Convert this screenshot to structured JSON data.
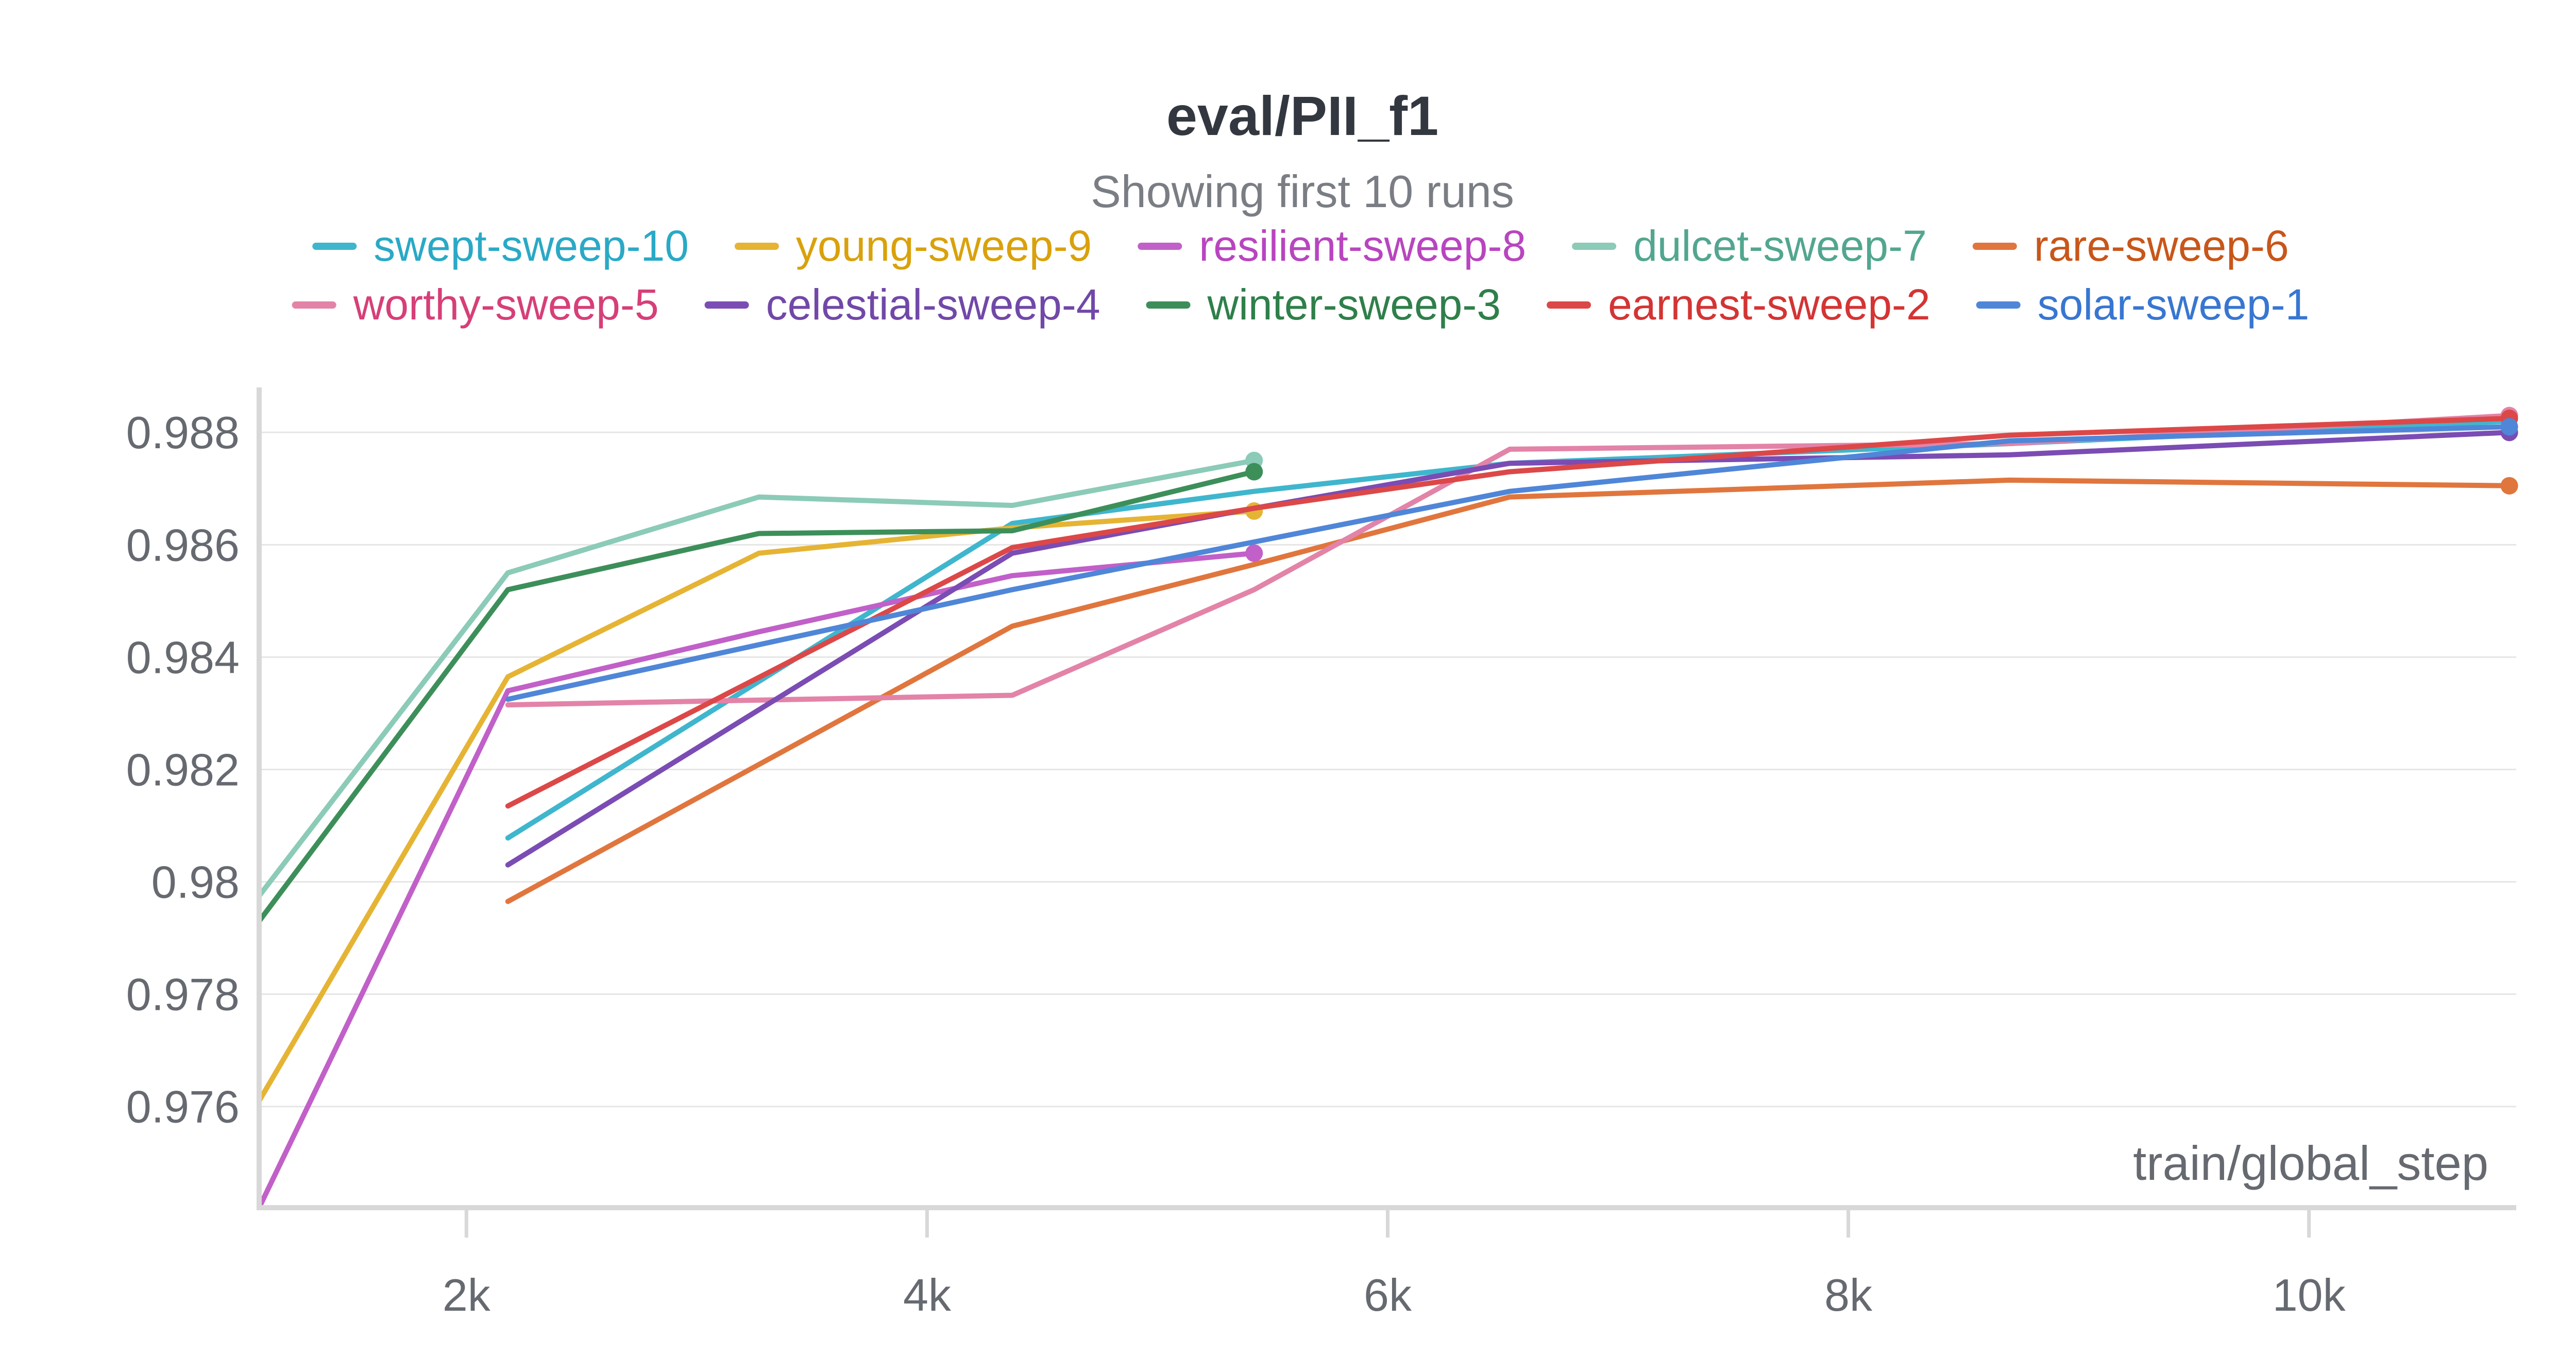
{
  "chart_data": {
    "type": "line",
    "title": "eval/PII_f1",
    "subtitle": "Showing first 10 runs",
    "xlabel": "train/global_step",
    "ylabel": "",
    "xlim": [
      1100,
      10900
    ],
    "ylim": [
      0.9742,
      0.9888
    ],
    "x_ticks": [
      2000,
      4000,
      6000,
      8000,
      10000
    ],
    "x_tick_labels": [
      "2k",
      "4k",
      "6k",
      "8k",
      "10k"
    ],
    "y_ticks": [
      0.976,
      0.978,
      0.98,
      0.982,
      0.984,
      0.986,
      0.988
    ],
    "y_tick_labels": [
      "0.976",
      "0.978",
      "0.98",
      "0.982",
      "0.984",
      "0.986",
      "0.988"
    ],
    "grid": true,
    "legend_position": "top",
    "series": [
      {
        "name": "swept-sweep-10",
        "color": "#3fb6cd",
        "text_color": "#2aa9c6",
        "end_marker": false,
        "x": [
          2180,
          4370,
          5420,
          6530,
          8700,
          10870
        ],
        "y": [
          0.98078,
          0.98638,
          0.98695,
          0.98745,
          0.9878,
          0.9882
        ]
      },
      {
        "name": "young-sweep-9",
        "color": "#e6b434",
        "text_color": "#d9a10b",
        "end_marker": true,
        "x": [
          1100,
          2180,
          3270,
          4370,
          5420
        ],
        "y": [
          0.9761,
          0.98365,
          0.98585,
          0.9863,
          0.9866
        ]
      },
      {
        "name": "resilient-sweep-8",
        "color": "#c160c8",
        "text_color": "#b845bf",
        "end_marker": true,
        "x": [
          1100,
          2180,
          3270,
          4370,
          5420
        ],
        "y": [
          0.9742,
          0.9834,
          0.98445,
          0.98545,
          0.98585
        ]
      },
      {
        "name": "dulcet-sweep-7",
        "color": "#8bcbb8",
        "text_color": "#52a68f",
        "end_marker": true,
        "x": [
          1100,
          2180,
          3270,
          4370,
          5420
        ],
        "y": [
          0.97975,
          0.9855,
          0.98685,
          0.9867,
          0.9875
        ]
      },
      {
        "name": "rare-sweep-6",
        "color": "#e0763e",
        "text_color": "#c8561a",
        "end_marker": true,
        "x": [
          2180,
          4370,
          5420,
          6530,
          8700,
          10870
        ],
        "y": [
          0.97965,
          0.98455,
          0.98565,
          0.98685,
          0.98715,
          0.98705
        ]
      },
      {
        "name": "worthy-sweep-5",
        "color": "#e383a8",
        "text_color": "#d63f78",
        "end_marker": true,
        "x": [
          2180,
          4370,
          5420,
          6530,
          8700,
          10870
        ],
        "y": [
          0.98315,
          0.98332,
          0.9852,
          0.9877,
          0.9878,
          0.9883
        ]
      },
      {
        "name": "celestial-sweep-4",
        "color": "#7b4cb3",
        "text_color": "#7148a8",
        "end_marker": true,
        "x": [
          2180,
          4370,
          5420,
          6530,
          8700,
          10870
        ],
        "y": [
          0.9803,
          0.98585,
          0.98665,
          0.98745,
          0.9876,
          0.988
        ]
      },
      {
        "name": "winter-sweep-3",
        "color": "#3d8f5a",
        "text_color": "#2f7f4a",
        "end_marker": true,
        "x": [
          1100,
          2180,
          3270,
          4370,
          5420
        ],
        "y": [
          0.9793,
          0.9852,
          0.9862,
          0.98625,
          0.9873
        ]
      },
      {
        "name": "earnest-sweep-2",
        "color": "#dc4848",
        "text_color": "#d43434",
        "end_marker": true,
        "x": [
          2180,
          4370,
          5420,
          6530,
          8700,
          10870
        ],
        "y": [
          0.98135,
          0.98595,
          0.98665,
          0.9873,
          0.98795,
          0.98825
        ]
      },
      {
        "name": "solar-sweep-1",
        "color": "#4f86d8",
        "text_color": "#3876d1",
        "end_marker": true,
        "x": [
          2180,
          4370,
          5420,
          6530,
          8700,
          10870
        ],
        "y": [
          0.98325,
          0.9852,
          0.98605,
          0.98695,
          0.98785,
          0.9881
        ]
      }
    ]
  }
}
